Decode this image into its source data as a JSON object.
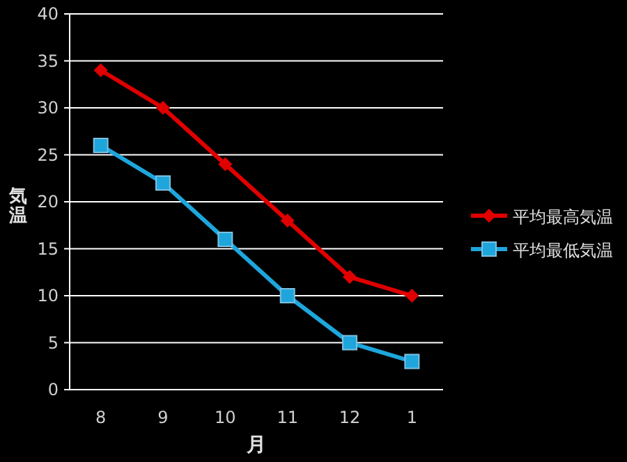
{
  "chart_data": {
    "type": "line",
    "xlabel": "月",
    "ylabel": "気温",
    "categories": [
      "8",
      "9",
      "10",
      "11",
      "12",
      "1"
    ],
    "series": [
      {
        "name": "平均最高気温",
        "color": "#e00000",
        "marker": "diamond",
        "values": [
          34,
          30,
          24,
          18,
          12,
          10
        ]
      },
      {
        "name": "平均最低気温",
        "color": "#1ea6dc",
        "marker": "square",
        "values": [
          26,
          22,
          16,
          10,
          5,
          3
        ]
      }
    ],
    "ylim": [
      0,
      40
    ],
    "yticks": [
      0,
      5,
      10,
      15,
      20,
      25,
      30,
      35,
      40
    ],
    "grid": "y",
    "legend": "right",
    "line_style": "solid"
  }
}
